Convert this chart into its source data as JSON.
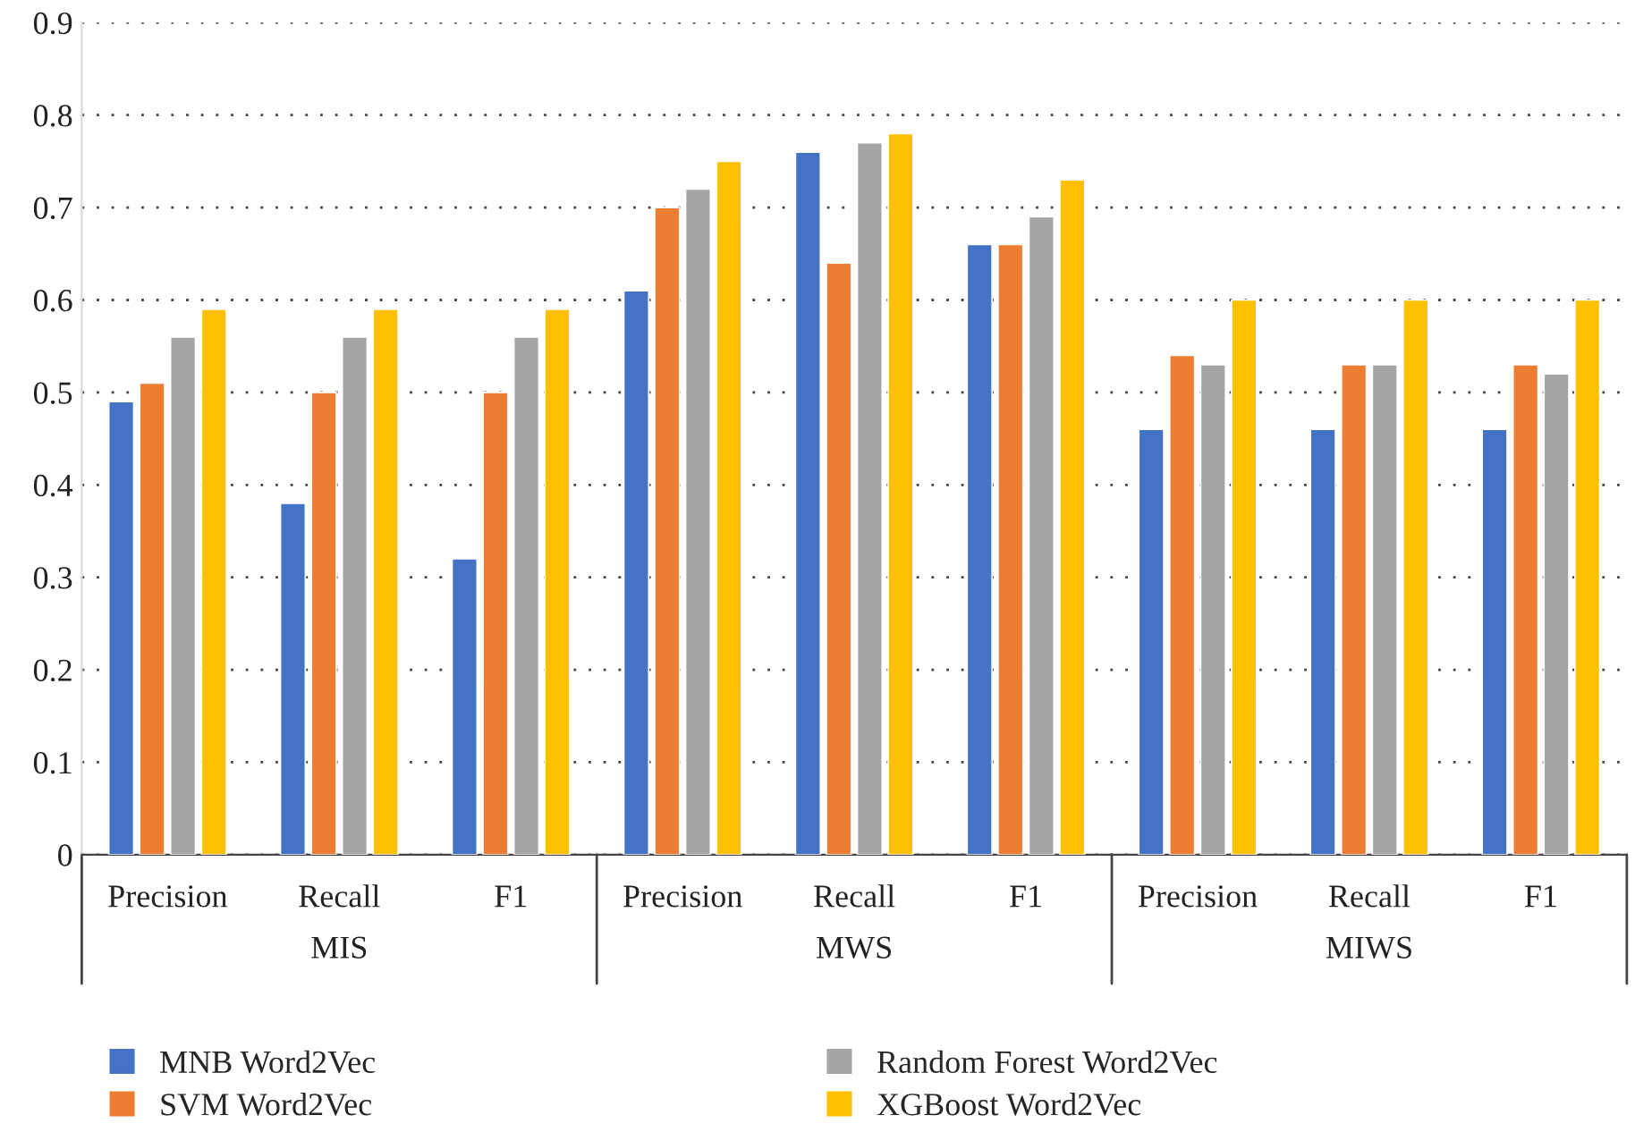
{
  "chart_data": {
    "type": "bar",
    "categories": [
      "Precision",
      "Recall",
      "F1",
      "Precision",
      "Recall",
      "F1",
      "Precision",
      "Recall",
      "F1"
    ],
    "series": [
      {
        "name": "MNB Word2Vec",
        "color": "#4472c4",
        "values": [
          0.49,
          0.38,
          0.32,
          0.61,
          0.76,
          0.66,
          0.46,
          0.46,
          0.46
        ]
      },
      {
        "name": "SVM Word2Vec",
        "color": "#ed7d31",
        "values": [
          0.51,
          0.5,
          0.5,
          0.7,
          0.64,
          0.66,
          0.54,
          0.53,
          0.53
        ]
      },
      {
        "name": "Random Forest Word2Vec",
        "color": "#a5a5a5",
        "values": [
          0.56,
          0.56,
          0.56,
          0.72,
          0.77,
          0.69,
          0.53,
          0.53,
          0.52
        ]
      },
      {
        "name": "XGBoost Word2Vec",
        "color": "#ffc000",
        "values": [
          0.59,
          0.59,
          0.59,
          0.75,
          0.78,
          0.73,
          0.6,
          0.6,
          0.6
        ]
      }
    ],
    "annotations": [
      "MIS",
      "MWS",
      "MIWS"
    ],
    "ylim": [
      0,
      0.9
    ],
    "yticks": [
      0,
      0.1,
      0.2,
      0.3,
      0.4,
      0.5,
      0.6,
      0.7,
      0.8,
      0.9
    ],
    "grid": "y",
    "legend": "bottom"
  }
}
